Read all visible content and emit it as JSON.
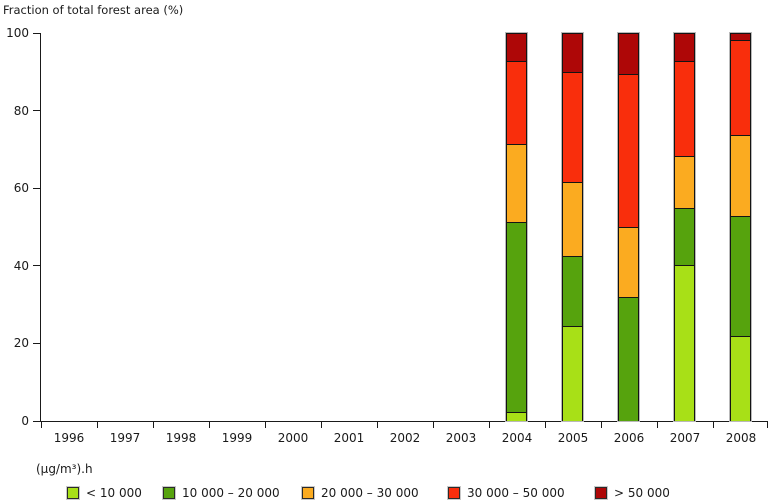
{
  "chart_data": {
    "type": "bar",
    "subtype": "stacked-vertical",
    "title": "Fraction of total forest area (%)",
    "unit_label": "(µg/m³).h",
    "xlabel": "",
    "ylabel": "Fraction of total forest area (%)",
    "ylim": [
      0,
      100
    ],
    "y_ticks": [
      0,
      20,
      40,
      60,
      80,
      100
    ],
    "grid": false,
    "legend_position": "bottom",
    "years": [
      "1996",
      "1997",
      "1998",
      "1999",
      "2000",
      "2001",
      "2002",
      "2003",
      "2004",
      "2005",
      "2006",
      "2007",
      "2008"
    ],
    "series": [
      {
        "name": "< 10 000",
        "color": "#a8e017",
        "values": {
          "2004": 2,
          "2005": 24.5,
          "2006": 0,
          "2007": 40.5,
          "2008": 22
        }
      },
      {
        "name": "10 000 – 20 000",
        "color": "#56a30d",
        "values": {
          "2004": 49.5,
          "2005": 18,
          "2006": 32,
          "2007": 14.5,
          "2008": 31
        }
      },
      {
        "name": "20 000 – 30 000",
        "color": "#fbab20",
        "values": {
          "2004": 20,
          "2005": 19,
          "2006": 18,
          "2007": 13.5,
          "2008": 21
        }
      },
      {
        "name": "30 000 – 50 000",
        "color": "#f92e0c",
        "values": {
          "2004": 21.5,
          "2005": 28.5,
          "2006": 39.5,
          "2007": 24.5,
          "2008": 24.5
        }
      },
      {
        "name": "> 50 000",
        "color": "#ae0707",
        "values": {
          "2004": 7,
          "2005": 10,
          "2006": 10.5,
          "2007": 7,
          "2008": 1.5
        }
      }
    ]
  }
}
